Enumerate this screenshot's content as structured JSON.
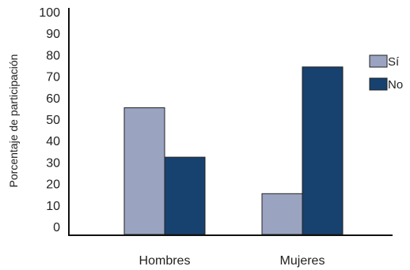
{
  "chart_data": {
    "type": "bar",
    "categories": [
      "Hombres",
      "Mujeres"
    ],
    "series": [
      {
        "name": "Sí",
        "values": [
          59,
          19
        ],
        "color": "#9aa4c1"
      },
      {
        "name": "No",
        "values": [
          36,
          78
        ],
        "color": "#17416f"
      }
    ],
    "xlabel": "",
    "ylabel": "Porcentaje de participación",
    "ylim": [
      0,
      100
    ],
    "yticks": [
      0,
      10,
      20,
      30,
      40,
      50,
      60,
      70,
      80,
      90,
      100
    ],
    "grid": false,
    "legend_position": "right"
  }
}
